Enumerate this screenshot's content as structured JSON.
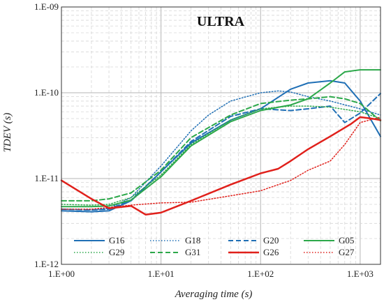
{
  "chart_data": {
    "type": "line",
    "title": "ULTRA",
    "xlabel": "Averaging time (s)",
    "ylabel": "TDEV (s)",
    "x_scale": "log",
    "y_scale": "log",
    "xlim": [
      1,
      1600
    ],
    "ylim": [
      1e-12,
      1e-09
    ],
    "x_ticks": [
      1,
      10,
      100,
      1000
    ],
    "x_tick_labels": [
      "1.E+00",
      "1.E+01",
      "1.E+02",
      "1.E+03"
    ],
    "y_ticks": [
      1e-12,
      1e-11,
      1e-10,
      1e-09
    ],
    "y_tick_labels": [
      "1.E-12",
      "1.E-11",
      "1.E-10",
      "1.E-09"
    ],
    "grid": true,
    "legend_position": "bottom",
    "series": [
      {
        "name": "G16",
        "color": "#1f6fb5",
        "dash": "solid",
        "width": 2,
        "x": [
          1,
          2,
          3,
          5,
          7,
          10,
          20,
          50,
          100,
          200,
          300,
          500,
          700,
          1000,
          1600
        ],
        "y": [
          4.2e-12,
          4.1e-12,
          4.2e-12,
          5.5e-12,
          8e-12,
          1.2e-11,
          2.6e-11,
          4.8e-11,
          6.5e-11,
          1.1e-10,
          1.3e-10,
          1.38e-10,
          1.3e-10,
          8e-11,
          3.1e-11
        ]
      },
      {
        "name": "G18",
        "color": "#1f6fb5",
        "dash": "dotted",
        "width": 1.5,
        "x": [
          1,
          2,
          3,
          5,
          10,
          20,
          30,
          50,
          100,
          150,
          200,
          300,
          500,
          1000,
          1600
        ],
        "y": [
          4.4e-12,
          4.3e-12,
          4.5e-12,
          6e-12,
          1.4e-11,
          3.6e-11,
          5.5e-11,
          8e-11,
          1e-10,
          1.05e-10,
          1.02e-10,
          9e-11,
          8e-11,
          6.5e-11,
          5.5e-11
        ]
      },
      {
        "name": "G20",
        "color": "#1f6fb5",
        "dash": "dashed",
        "width": 2,
        "x": [
          1,
          2,
          3,
          5,
          10,
          20,
          50,
          100,
          200,
          300,
          500,
          700,
          1000,
          1600
        ],
        "y": [
          4.4e-12,
          4.3e-12,
          4.4e-12,
          5.6e-12,
          1.2e-11,
          2.7e-11,
          5.3e-11,
          6.5e-11,
          6.2e-11,
          6.5e-11,
          7e-11,
          4.5e-11,
          5.8e-11,
          9.8e-11
        ]
      },
      {
        "name": "G05",
        "color": "#2ca84a",
        "dash": "solid",
        "width": 2,
        "x": [
          1,
          2,
          3,
          5,
          10,
          20,
          50,
          100,
          200,
          300,
          500,
          700,
          1000,
          1600
        ],
        "y": [
          4.7e-12,
          4.7e-12,
          4.8e-12,
          5.6e-12,
          1.05e-11,
          2.4e-11,
          4.6e-11,
          6.2e-11,
          7.2e-11,
          8.5e-11,
          1.3e-10,
          1.75e-10,
          1.85e-10,
          1.85e-10
        ]
      },
      {
        "name": "G29",
        "color": "#2ca84a",
        "dash": "dotted",
        "width": 1.5,
        "x": [
          1,
          2,
          3,
          5,
          10,
          20,
          50,
          100,
          200,
          300,
          500,
          1000,
          1600
        ],
        "y": [
          5e-12,
          4.9e-12,
          5e-12,
          6e-12,
          1.1e-11,
          2.5e-11,
          4.8e-11,
          6.5e-11,
          7e-11,
          7e-11,
          6.8e-11,
          6e-11,
          5e-11
        ]
      },
      {
        "name": "G31",
        "color": "#2ca84a",
        "dash": "dashed",
        "width": 2,
        "x": [
          1,
          2,
          3,
          5,
          10,
          20,
          50,
          100,
          200,
          300,
          500,
          700,
          1000,
          1600
        ],
        "y": [
          5.5e-12,
          5.5e-12,
          5.8e-12,
          6.8e-12,
          1.25e-11,
          3e-11,
          5.5e-11,
          7.5e-11,
          8.2e-11,
          8.5e-11,
          9e-11,
          8.5e-11,
          7.5e-11,
          4.7e-11
        ]
      },
      {
        "name": "G26",
        "color": "#e0201b",
        "dash": "solid",
        "width": 2.5,
        "x": [
          1,
          2,
          3,
          5,
          7,
          10,
          20,
          50,
          100,
          150,
          200,
          300,
          500,
          800,
          1000,
          1300,
          1600
        ],
        "y": [
          9.5e-12,
          5.8e-12,
          4.5e-12,
          4.8e-12,
          3.8e-12,
          4e-12,
          5.5e-12,
          8.5e-12,
          1.15e-11,
          1.3e-11,
          1.6e-11,
          2.2e-11,
          3.1e-11,
          4.3e-11,
          5.2e-11,
          5e-11,
          4.8e-11
        ]
      },
      {
        "name": "G27",
        "color": "#e0201b",
        "dash": "dotted",
        "width": 1.5,
        "x": [
          1,
          2,
          3,
          5,
          10,
          20,
          50,
          100,
          200,
          300,
          500,
          700,
          1000,
          1600
        ],
        "y": [
          4.4e-12,
          4.4e-12,
          4.6e-12,
          4.9e-12,
          5.2e-12,
          5.3e-12,
          6.3e-12,
          7.2e-12,
          9.5e-12,
          1.25e-11,
          1.6e-11,
          2.5e-11,
          4.5e-11,
          5.2e-11
        ]
      }
    ]
  }
}
